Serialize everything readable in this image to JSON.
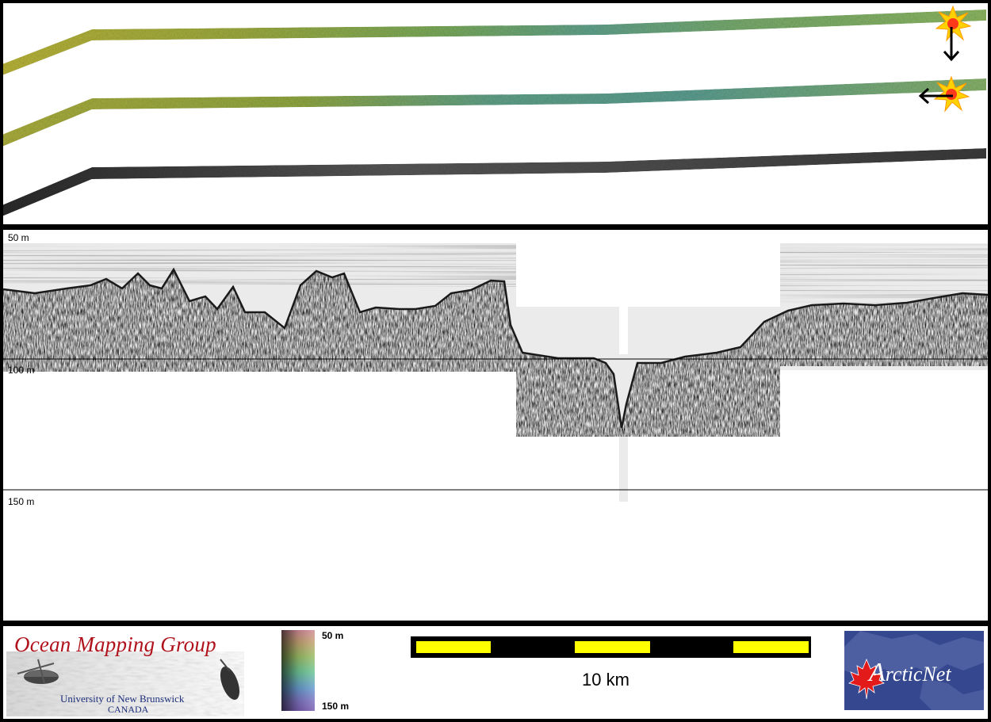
{
  "swath": {
    "tracks": [
      {
        "name": "bathymetry-color-track"
      },
      {
        "name": "backscatter-color-track"
      },
      {
        "name": "sidescan-gray-track"
      }
    ],
    "sun_icon": "sun-illumination-icon",
    "arrow_down_icon": "arrow-down-icon",
    "arrow_left_icon": "arrow-left-icon"
  },
  "profile": {
    "depth_labels": {
      "top": "50 m",
      "mid": "100 m",
      "bottom": "150 m"
    }
  },
  "legend": {
    "ocean_mapping": {
      "title": "Ocean Mapping Group",
      "university": "University of New Brunswick",
      "country": "CANADA"
    },
    "colorbar": {
      "top_label": "50 m",
      "bottom_label": "150 m"
    },
    "scale": {
      "label": "10 km",
      "segment_color": "#ffff00"
    },
    "arcticnet": {
      "text_prefix": "A",
      "text_rest": "rcticNet"
    }
  },
  "colors": {
    "border": "#000000",
    "omg_red": "#b0121b",
    "omg_blue": "#1d2f7a",
    "arcticnet_bg": "#34478f",
    "maple_red": "#e21a1a"
  }
}
